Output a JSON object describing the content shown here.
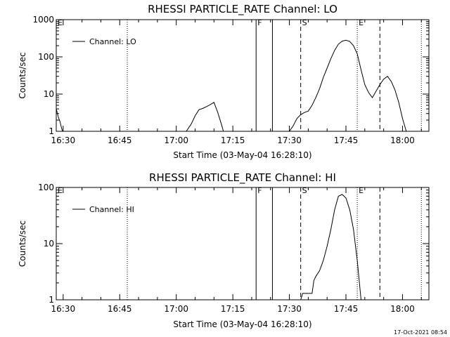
{
  "timestamp": "17-Oct-2021 08:54",
  "chart_data": [
    {
      "type": "line",
      "title": "RHESSI PARTICLE_RATE Channel: LO",
      "xlabel": "Start Time (03-May-04 16:28:10)",
      "ylabel": "Counts/sec",
      "yscale": "log",
      "ylim": [
        1,
        1000
      ],
      "xlim": [
        "16:28:10",
        "18:07:00"
      ],
      "x_ticks": [
        "16:30",
        "16:45",
        "17:00",
        "17:15",
        "17:30",
        "17:45",
        "18:00"
      ],
      "y_ticks": [
        "1",
        "10",
        "100",
        "1000"
      ],
      "legend": {
        "position": "top-left",
        "entries": [
          "Channel: LO"
        ]
      },
      "grid": false,
      "markers": [
        {
          "label": "E",
          "time": "16:28:10",
          "style": "dotted"
        },
        {
          "label": "",
          "time": "16:47:00",
          "style": "dotted"
        },
        {
          "label": "F",
          "time": "17:21:10",
          "style": "solid"
        },
        {
          "label": "",
          "time": "17:25:30",
          "style": "solid"
        },
        {
          "label": "S",
          "time": "17:33:00",
          "style": "dashed"
        },
        {
          "label": "E",
          "time": "17:48:00",
          "style": "dotted"
        },
        {
          "label": "",
          "time": "17:54:00",
          "style": "dashed"
        },
        {
          "label": "",
          "time": "18:05:00",
          "style": "dotted"
        }
      ],
      "series": [
        {
          "name": "Channel: LO",
          "x": [
            "16:28:10",
            "16:28:40",
            "16:29:10",
            "16:29:30",
            "16:29:50"
          ],
          "y": [
            4,
            2.5,
            1.8,
            1.3,
            1
          ]
        },
        {
          "name": "Channel: LO",
          "x": [
            "17:02:40",
            "17:04:00",
            "17:05:00",
            "17:06:00",
            "17:07:00",
            "17:08:00",
            "17:09:00",
            "17:10:00",
            "17:11:00",
            "17:12:00",
            "17:12:30"
          ],
          "y": [
            1,
            1.6,
            2.6,
            3.8,
            4.1,
            4.6,
            5.2,
            6.0,
            3.2,
            1.5,
            1
          ]
        },
        {
          "name": "Channel: LO",
          "x": [
            "17:30:00",
            "17:31:00",
            "17:32:00",
            "17:33:00",
            "17:34:00",
            "17:35:00",
            "17:36:00",
            "17:37:00",
            "17:38:00",
            "17:39:00",
            "17:40:00",
            "17:41:00",
            "17:42:00",
            "17:43:00",
            "17:44:00",
            "17:45:00",
            "17:46:00",
            "17:47:00",
            "17:48:00",
            "17:49:00",
            "17:50:00",
            "17:51:00",
            "17:52:00",
            "17:53:00",
            "17:54:00",
            "17:55:00",
            "17:56:00",
            "17:57:00",
            "17:58:00",
            "17:59:00",
            "18:00:00",
            "18:01:00"
          ],
          "y": [
            1,
            1.4,
            2.2,
            2.8,
            3.2,
            3.5,
            5,
            8,
            14,
            28,
            50,
            90,
            150,
            220,
            265,
            280,
            260,
            200,
            120,
            45,
            18,
            11,
            8,
            12,
            18,
            25,
            30,
            22,
            13,
            6,
            2.2,
            1
          ]
        }
      ]
    },
    {
      "type": "line",
      "title": "RHESSI PARTICLE_RATE Channel: HI",
      "xlabel": "Start Time (03-May-04 16:28:10)",
      "ylabel": "Counts/sec",
      "yscale": "log",
      "ylim": [
        1,
        100
      ],
      "xlim": [
        "16:28:10",
        "18:07:00"
      ],
      "x_ticks": [
        "16:30",
        "16:45",
        "17:00",
        "17:15",
        "17:30",
        "17:45",
        "18:00"
      ],
      "y_ticks": [
        "1",
        "10",
        "100"
      ],
      "legend": {
        "position": "top-left",
        "entries": [
          "Channel: HI"
        ]
      },
      "grid": false,
      "markers": [
        {
          "label": "E",
          "time": "16:28:10",
          "style": "dotted"
        },
        {
          "label": "",
          "time": "16:47:00",
          "style": "dotted"
        },
        {
          "label": "F",
          "time": "17:21:10",
          "style": "solid"
        },
        {
          "label": "",
          "time": "17:25:30",
          "style": "solid"
        },
        {
          "label": "S",
          "time": "17:33:00",
          "style": "dashed"
        },
        {
          "label": "E",
          "time": "17:48:00",
          "style": "dotted"
        },
        {
          "label": "",
          "time": "17:54:00",
          "style": "dashed"
        },
        {
          "label": "",
          "time": "18:05:00",
          "style": "dotted"
        }
      ],
      "series": [
        {
          "name": "Channel: HI",
          "x": [
            "17:33:00",
            "17:33:30",
            "17:34:00",
            "17:36:00",
            "17:36:30",
            "17:37:00",
            "17:38:00",
            "17:39:00",
            "17:40:00",
            "17:41:00",
            "17:42:00",
            "17:43:00",
            "17:44:00",
            "17:45:00",
            "17:46:00",
            "17:47:00",
            "17:48:00",
            "17:49:00"
          ],
          "y": [
            1,
            1.3,
            1.3,
            1.3,
            2.2,
            2.6,
            3.3,
            5,
            9,
            18,
            40,
            70,
            75,
            65,
            40,
            18,
            5,
            1
          ]
        }
      ]
    }
  ]
}
